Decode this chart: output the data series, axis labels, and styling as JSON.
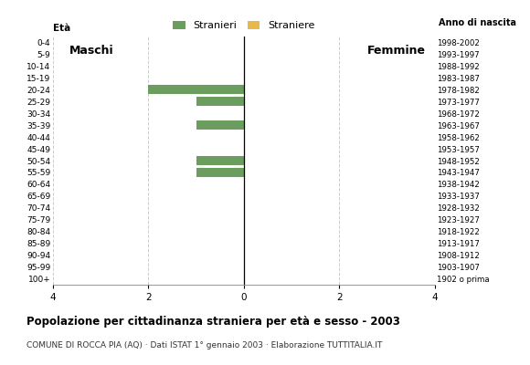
{
  "age_groups": [
    "100+",
    "95-99",
    "90-94",
    "85-89",
    "80-84",
    "75-79",
    "70-74",
    "65-69",
    "60-64",
    "55-59",
    "50-54",
    "45-49",
    "40-44",
    "35-39",
    "30-34",
    "25-29",
    "20-24",
    "15-19",
    "10-14",
    "5-9",
    "0-4"
  ],
  "birth_years": [
    "1902 o prima",
    "1903-1907",
    "1908-1912",
    "1913-1917",
    "1918-1922",
    "1923-1927",
    "1928-1932",
    "1933-1937",
    "1938-1942",
    "1943-1947",
    "1948-1952",
    "1953-1957",
    "1958-1962",
    "1963-1967",
    "1968-1972",
    "1973-1977",
    "1978-1982",
    "1983-1987",
    "1988-1992",
    "1993-1997",
    "1998-2002"
  ],
  "male_stranieri": [
    0,
    0,
    0,
    0,
    0,
    0,
    0,
    0,
    0,
    1,
    1,
    0,
    0,
    1,
    0,
    1,
    2,
    0,
    0,
    0,
    0
  ],
  "male_straniere": [
    0,
    0,
    0,
    0,
    0,
    0,
    0,
    0,
    0,
    0,
    0,
    0,
    0,
    0,
    0,
    0,
    0,
    0,
    0,
    0,
    0
  ],
  "female_stranieri": [
    0,
    0,
    0,
    0,
    0,
    0,
    0,
    0,
    0,
    0,
    0,
    0,
    0,
    0,
    0,
    0,
    0,
    0,
    0,
    0,
    0
  ],
  "female_straniere": [
    0,
    0,
    0,
    0,
    0,
    0,
    0,
    0,
    0,
    0,
    0,
    0,
    0,
    0,
    0,
    0,
    0,
    0,
    0,
    0,
    0
  ],
  "color_stranieri": "#6b9e5e",
  "color_straniere": "#e8b84b",
  "xlim": 4,
  "title": "Popolazione per cittadinanza straniera per età e sesso - 2003",
  "subtitle": "COMUNE DI ROCCA PIA (AQ) · Dati ISTAT 1° gennaio 2003 · Elaborazione TUTTITALIA.IT",
  "legend_stranieri": "Stranieri",
  "legend_straniere": "Straniere",
  "maschi_label": "Maschi",
  "femmine_label": "Femmine",
  "eta_label": "Età",
  "anno_label": "Anno di nascita"
}
